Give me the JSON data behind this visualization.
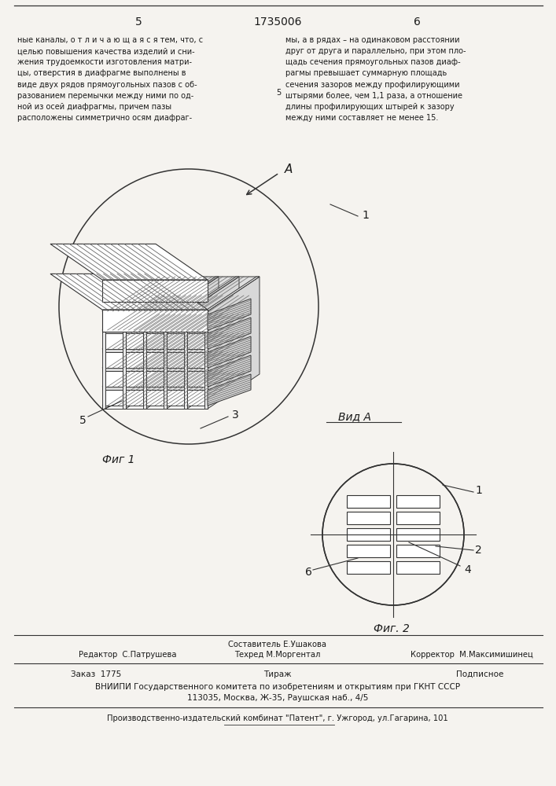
{
  "page_left": "5",
  "page_center": "1735006",
  "page_right": "6",
  "text_left": "ные каналы, о т л и ч а ю щ а я с я тем, что, с\nцелью повышения качества изделий и сни-\nжения трудоемкости изготовления матри-\nцы, отверстия в диафрагме выполнены в\nвиде двух рядов прямоугольных пазов с об-\nразованием перемычки между ними по од-\nной из осей диафрагмы, причем пазы\nрасположены симметрично осям диафраг-",
  "text_right": "мы, а в рядах – на одинаковом расстоянии\nдруг от друга и параллельно, при этом пло-\nщадь сечения прямоугольных пазов диаф-\nрагмы превышает суммарную площадь\nсечения зазоров между профилирующими\nштырями более, чем 1,1 раза, а отношение\nдлины профилирующих штырей к зазору\nмежду ними составляет не менее 15.",
  "num5_marker": "5",
  "fig1_label": "Фиг 1",
  "fig2_label": "Фиг. 2",
  "vid_a_label": "Вид А",
  "label_A": "А",
  "label_1_fig1": "1",
  "label_3": "3",
  "label_5": "5",
  "label_1_fig2": "1",
  "label_2": "2",
  "label_4": "4",
  "label_6": "6",
  "editor_label": "Редактор",
  "editor_name": "С.Патрушева",
  "sostavitel_label": "Составитель",
  "sostavitel_name": "Е.Ушакова",
  "tehred_label": "Техред",
  "tehred_name": "М.Моргентал",
  "korrektor_label": "Корректор",
  "korrektor_name": "М.Максимишинец",
  "order_label": "Заказ",
  "order_num": "1775",
  "tirazh_label": "Тираж",
  "podpisnoe_label": "Подписное",
  "vnipi_line1": "ВНИИПИ Государственного комитета по изобретениям и открытиям при ГКНТ СССР",
  "vnipi_line2": "113035, Москва, Ж-35, Раушская наб., 4/5",
  "production_line": "Производственно-издательский комбинат \"Патент\", г. Ужгород, ул.Гагарина, 101",
  "bg_color": "#f5f3ef",
  "text_color": "#1a1a1a",
  "line_color": "#333333"
}
